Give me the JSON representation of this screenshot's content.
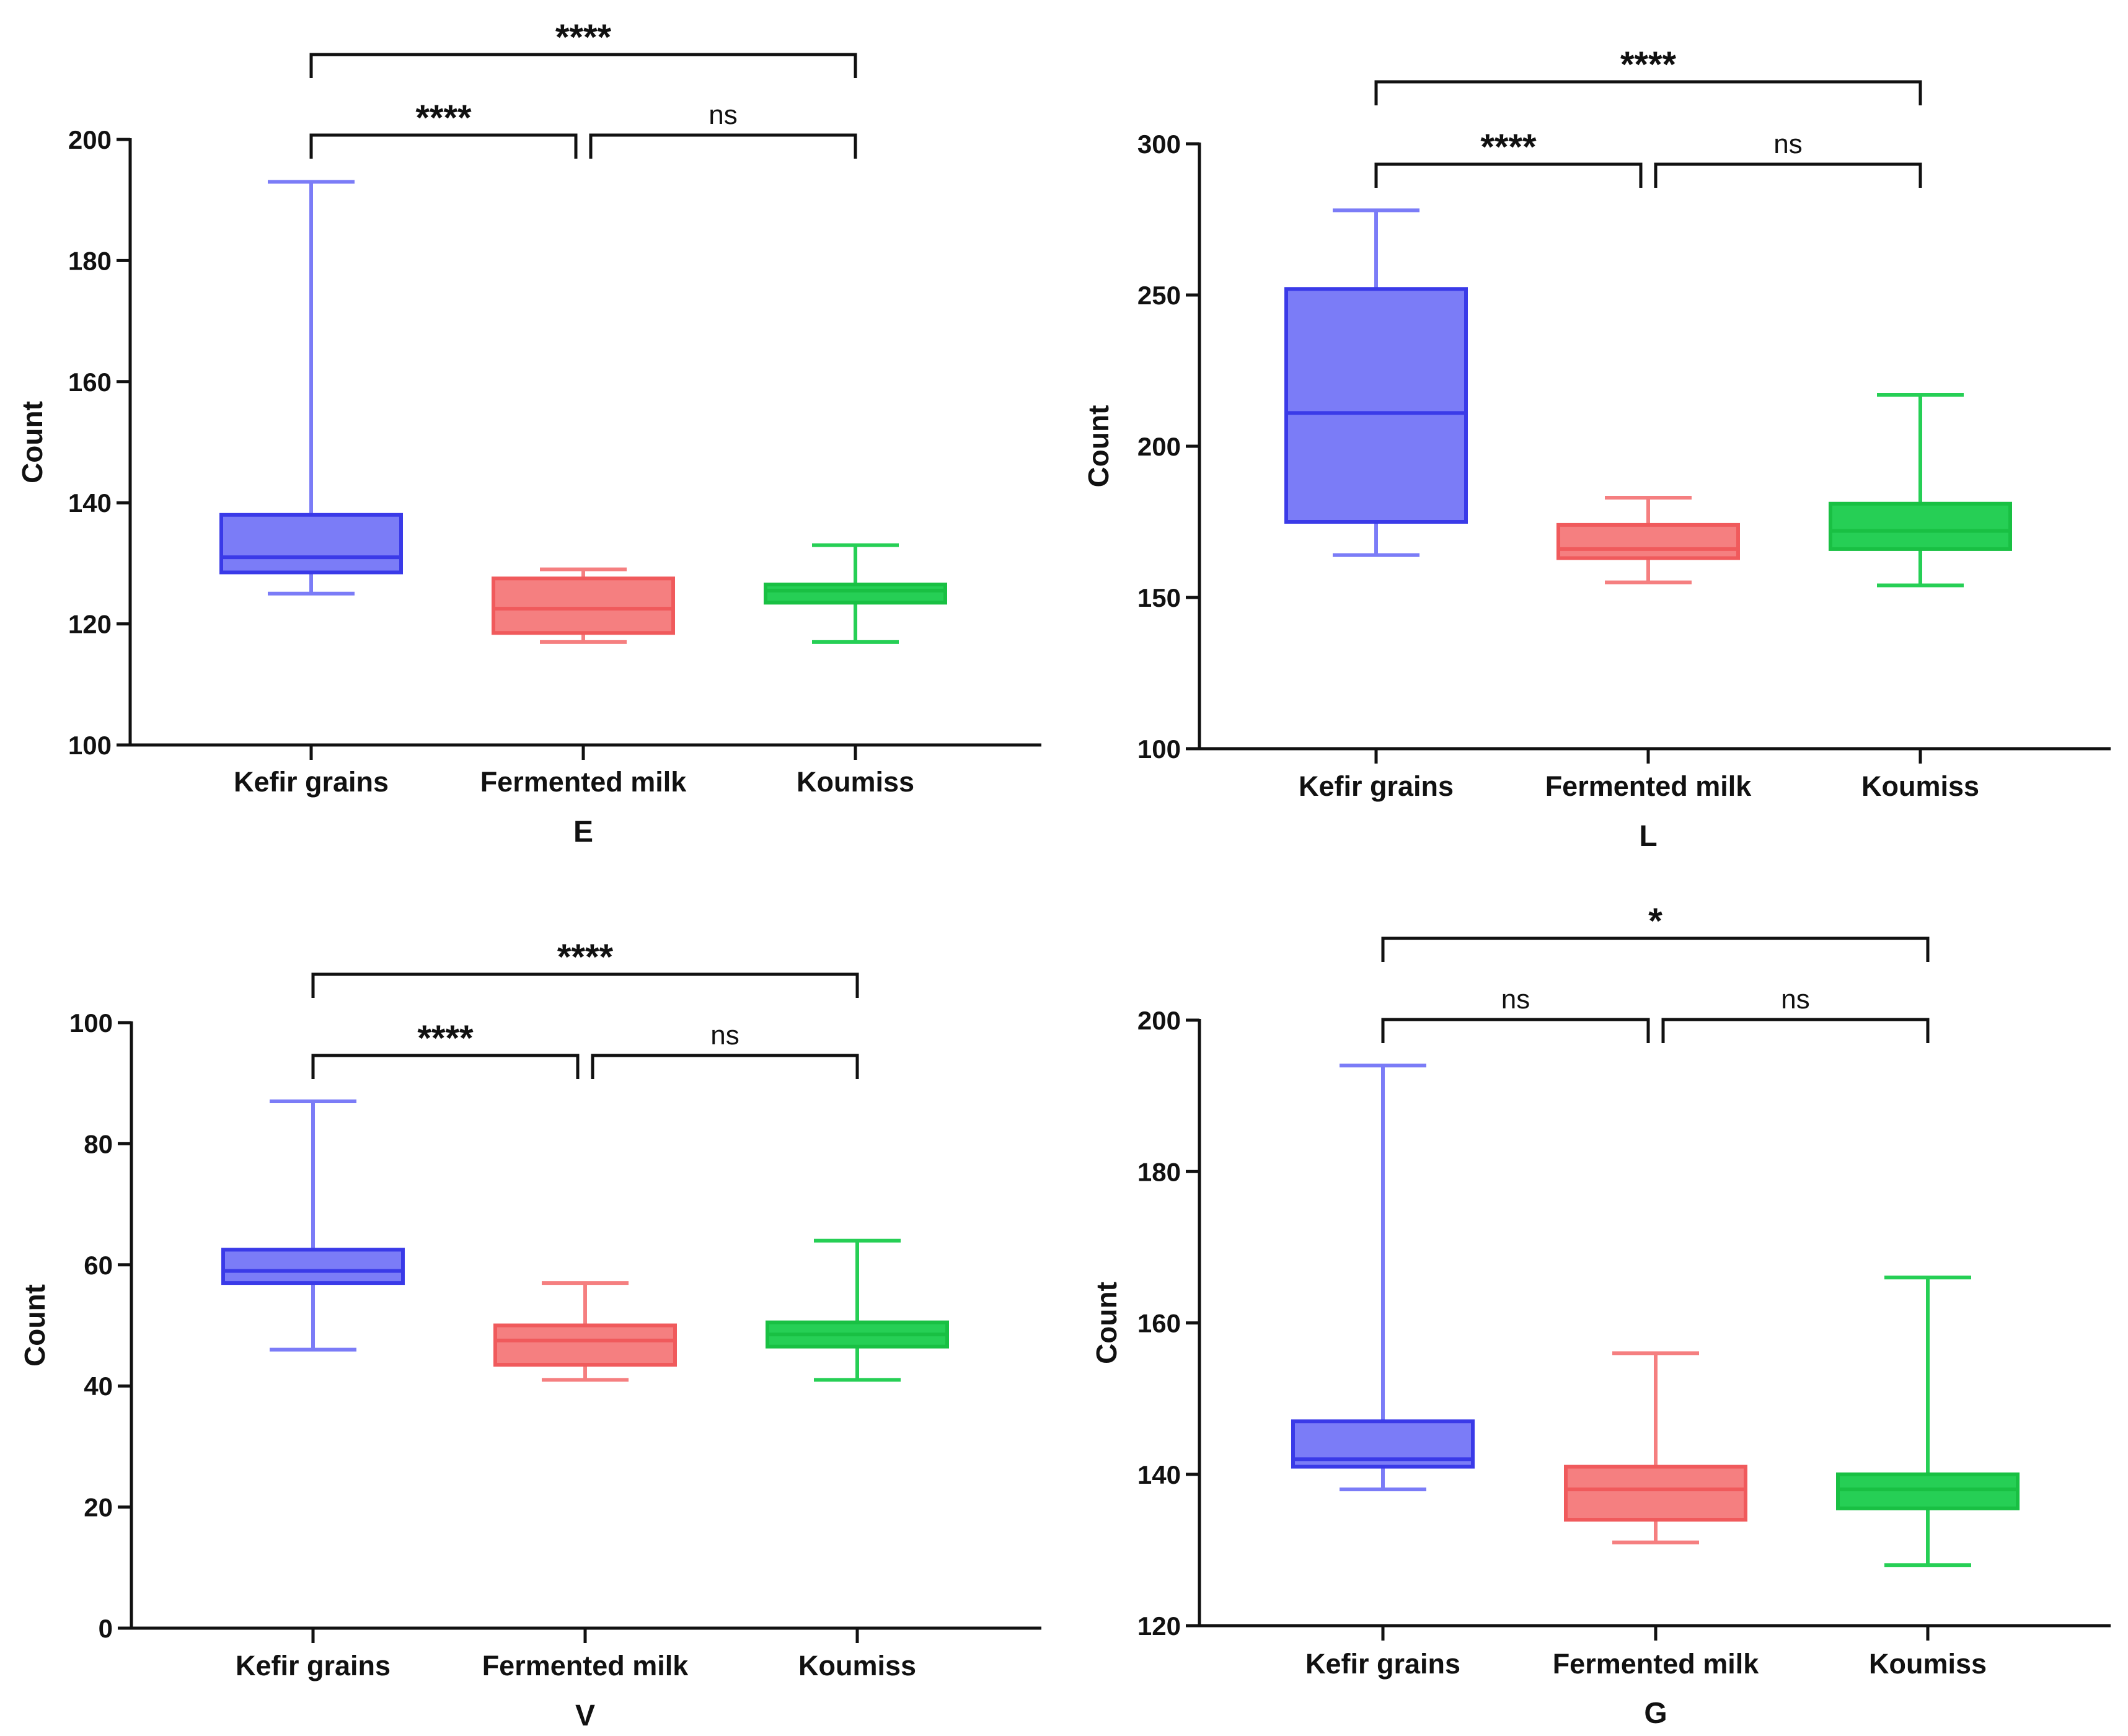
{
  "figure": {
    "panel_count": 4
  },
  "colors": {
    "kefir": {
      "fill": "#7b7cf7",
      "stroke": "#3a3ae8"
    },
    "fermented": {
      "fill": "#f57f80",
      "stroke": "#f05a5c"
    },
    "koumiss": {
      "fill": "#26cf55",
      "stroke": "#19c043"
    },
    "axis": "#111111"
  },
  "chart_data": [
    {
      "type": "box",
      "panel": "E",
      "xlabel": "E",
      "ylabel": "Count",
      "ylim": [
        100,
        200
      ],
      "yticks": [
        100,
        120,
        140,
        160,
        180,
        200
      ],
      "categories": [
        "Kefir grains",
        "Fermented milk",
        "Koumiss"
      ],
      "boxes": [
        {
          "name": "Kefir grains",
          "min": 125,
          "q1": 128.5,
          "median": 131,
          "q3": 138,
          "max": 193,
          "color": "kefir"
        },
        {
          "name": "Fermented milk",
          "min": 117,
          "q1": 118.5,
          "median": 122.5,
          "q3": 127.5,
          "max": 129,
          "color": "fermented"
        },
        {
          "name": "Koumiss",
          "min": 117,
          "q1": 123.5,
          "median": 125.5,
          "q3": 126.5,
          "max": 133,
          "color": "koumiss"
        }
      ],
      "comparisons": [
        {
          "from": 0,
          "to": 1,
          "label": "****",
          "level": 1
        },
        {
          "from": 1,
          "to": 2,
          "label": "ns",
          "level": 1
        },
        {
          "from": 0,
          "to": 2,
          "label": "****",
          "level": 2
        }
      ]
    },
    {
      "type": "box",
      "panel": "L",
      "xlabel": "L",
      "ylabel": "Count",
      "ylim": [
        100,
        300
      ],
      "yticks": [
        100,
        150,
        200,
        250,
        300
      ],
      "categories": [
        "Kefir grains",
        "Fermented milk",
        "Koumiss"
      ],
      "boxes": [
        {
          "name": "Kefir grains",
          "min": 164,
          "q1": 175,
          "median": 211,
          "q3": 252,
          "max": 278,
          "color": "kefir"
        },
        {
          "name": "Fermented milk",
          "min": 155,
          "q1": 163,
          "median": 166,
          "q3": 174,
          "max": 183,
          "color": "fermented"
        },
        {
          "name": "Koumiss",
          "min": 154,
          "q1": 166,
          "median": 172,
          "q3": 181,
          "max": 217,
          "color": "koumiss"
        }
      ],
      "comparisons": [
        {
          "from": 0,
          "to": 1,
          "label": "****",
          "level": 1
        },
        {
          "from": 1,
          "to": 2,
          "label": "ns",
          "level": 1
        },
        {
          "from": 0,
          "to": 2,
          "label": "****",
          "level": 2
        }
      ]
    },
    {
      "type": "box",
      "panel": "V",
      "xlabel": "V",
      "ylabel": "Count",
      "ylim": [
        0,
        100
      ],
      "yticks": [
        0,
        20,
        40,
        60,
        80,
        100
      ],
      "categories": [
        "Kefir grains",
        "Fermented milk",
        "Koumiss"
      ],
      "boxes": [
        {
          "name": "Kefir grains",
          "min": 46,
          "q1": 57,
          "median": 59,
          "q3": 62.5,
          "max": 87,
          "color": "kefir"
        },
        {
          "name": "Fermented milk",
          "min": 41,
          "q1": 43.5,
          "median": 47.5,
          "q3": 50,
          "max": 57,
          "color": "fermented"
        },
        {
          "name": "Koumiss",
          "min": 41,
          "q1": 46.5,
          "median": 48.5,
          "q3": 50.5,
          "max": 64,
          "color": "koumiss"
        }
      ],
      "comparisons": [
        {
          "from": 0,
          "to": 1,
          "label": "****",
          "level": 1
        },
        {
          "from": 1,
          "to": 2,
          "label": "ns",
          "level": 1
        },
        {
          "from": 0,
          "to": 2,
          "label": "****",
          "level": 2
        }
      ]
    },
    {
      "type": "box",
      "panel": "G",
      "xlabel": "G",
      "ylabel": "Count",
      "ylim": [
        120,
        200
      ],
      "yticks": [
        120,
        140,
        160,
        180,
        200
      ],
      "categories": [
        "Kefir grains",
        "Fermented milk",
        "Koumiss"
      ],
      "boxes": [
        {
          "name": "Kefir grains",
          "min": 138,
          "q1": 141,
          "median": 142,
          "q3": 147,
          "max": 194,
          "color": "kefir"
        },
        {
          "name": "Fermented milk",
          "min": 131,
          "q1": 134,
          "median": 138,
          "q3": 141,
          "max": 156,
          "color": "fermented"
        },
        {
          "name": "Koumiss",
          "min": 128,
          "q1": 135.5,
          "median": 138,
          "q3": 140,
          "max": 166,
          "color": "koumiss"
        }
      ],
      "comparisons": [
        {
          "from": 0,
          "to": 1,
          "label": "ns",
          "level": 1
        },
        {
          "from": 1,
          "to": 2,
          "label": "ns",
          "level": 1
        },
        {
          "from": 0,
          "to": 2,
          "label": "*",
          "level": 2
        }
      ]
    }
  ]
}
